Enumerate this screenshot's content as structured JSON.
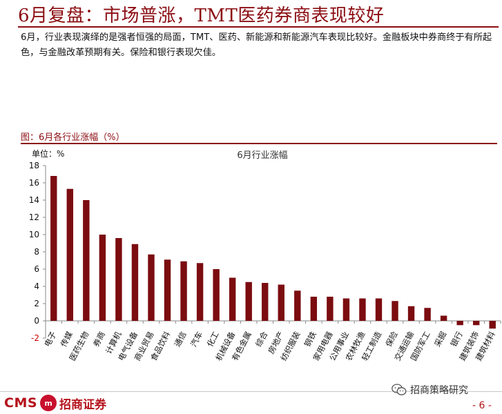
{
  "header": {
    "title": "6月复盘：市场普涨，TMT医药券商表现较好",
    "summary": "6月，行业表现演绎的是强者恒强的局面，TMT、医药、新能源和新能源汽车表现比较好。金融板块中券商终于有所起色，与金融改革预期有关。保险和银行表现欠佳。"
  },
  "figure": {
    "caption": "图：6月各行业涨幅（%）",
    "unit_label": "单位：%",
    "chart_title": "6月行业涨幅"
  },
  "chart_data": {
    "type": "bar",
    "title": "6月行业涨幅",
    "ylabel": "单位：%",
    "xlabel": "",
    "ylim": [
      -2,
      18
    ],
    "yticks": [
      -2,
      0,
      2,
      4,
      6,
      8,
      10,
      12,
      14,
      16,
      18
    ],
    "grid": false,
    "bar_color": "#7b0c10",
    "negative_tick_color": "#cc0000",
    "categories": [
      "电子",
      "传媒",
      "医药生物",
      "券商",
      "计算机",
      "电气设备",
      "商业贸易",
      "食品饮料",
      "通信",
      "汽车",
      "化工",
      "机械设备",
      "有色金属",
      "综合",
      "房地产",
      "纺织服装",
      "钢铁",
      "家用电器",
      "公用事业",
      "农林牧渔",
      "轻工制造",
      "保险",
      "交通运输",
      "国防军工",
      "采掘",
      "银行",
      "建筑装饰",
      "建筑材料"
    ],
    "values": [
      16.8,
      15.3,
      14.0,
      10.0,
      9.6,
      8.9,
      7.7,
      7.1,
      6.9,
      6.7,
      6.0,
      5.0,
      4.5,
      4.4,
      4.2,
      3.5,
      2.8,
      2.8,
      2.6,
      2.6,
      2.6,
      2.3,
      1.7,
      1.5,
      0.6,
      -0.5,
      -0.5,
      -0.9
    ]
  },
  "footer": {
    "logo_text": "CMS",
    "logo_emblem": "m",
    "logo_name": "招商证券",
    "wechat_account": "招商策略研究",
    "wechat_icon": "wechat-icon",
    "page_number": "- 6 -"
  }
}
